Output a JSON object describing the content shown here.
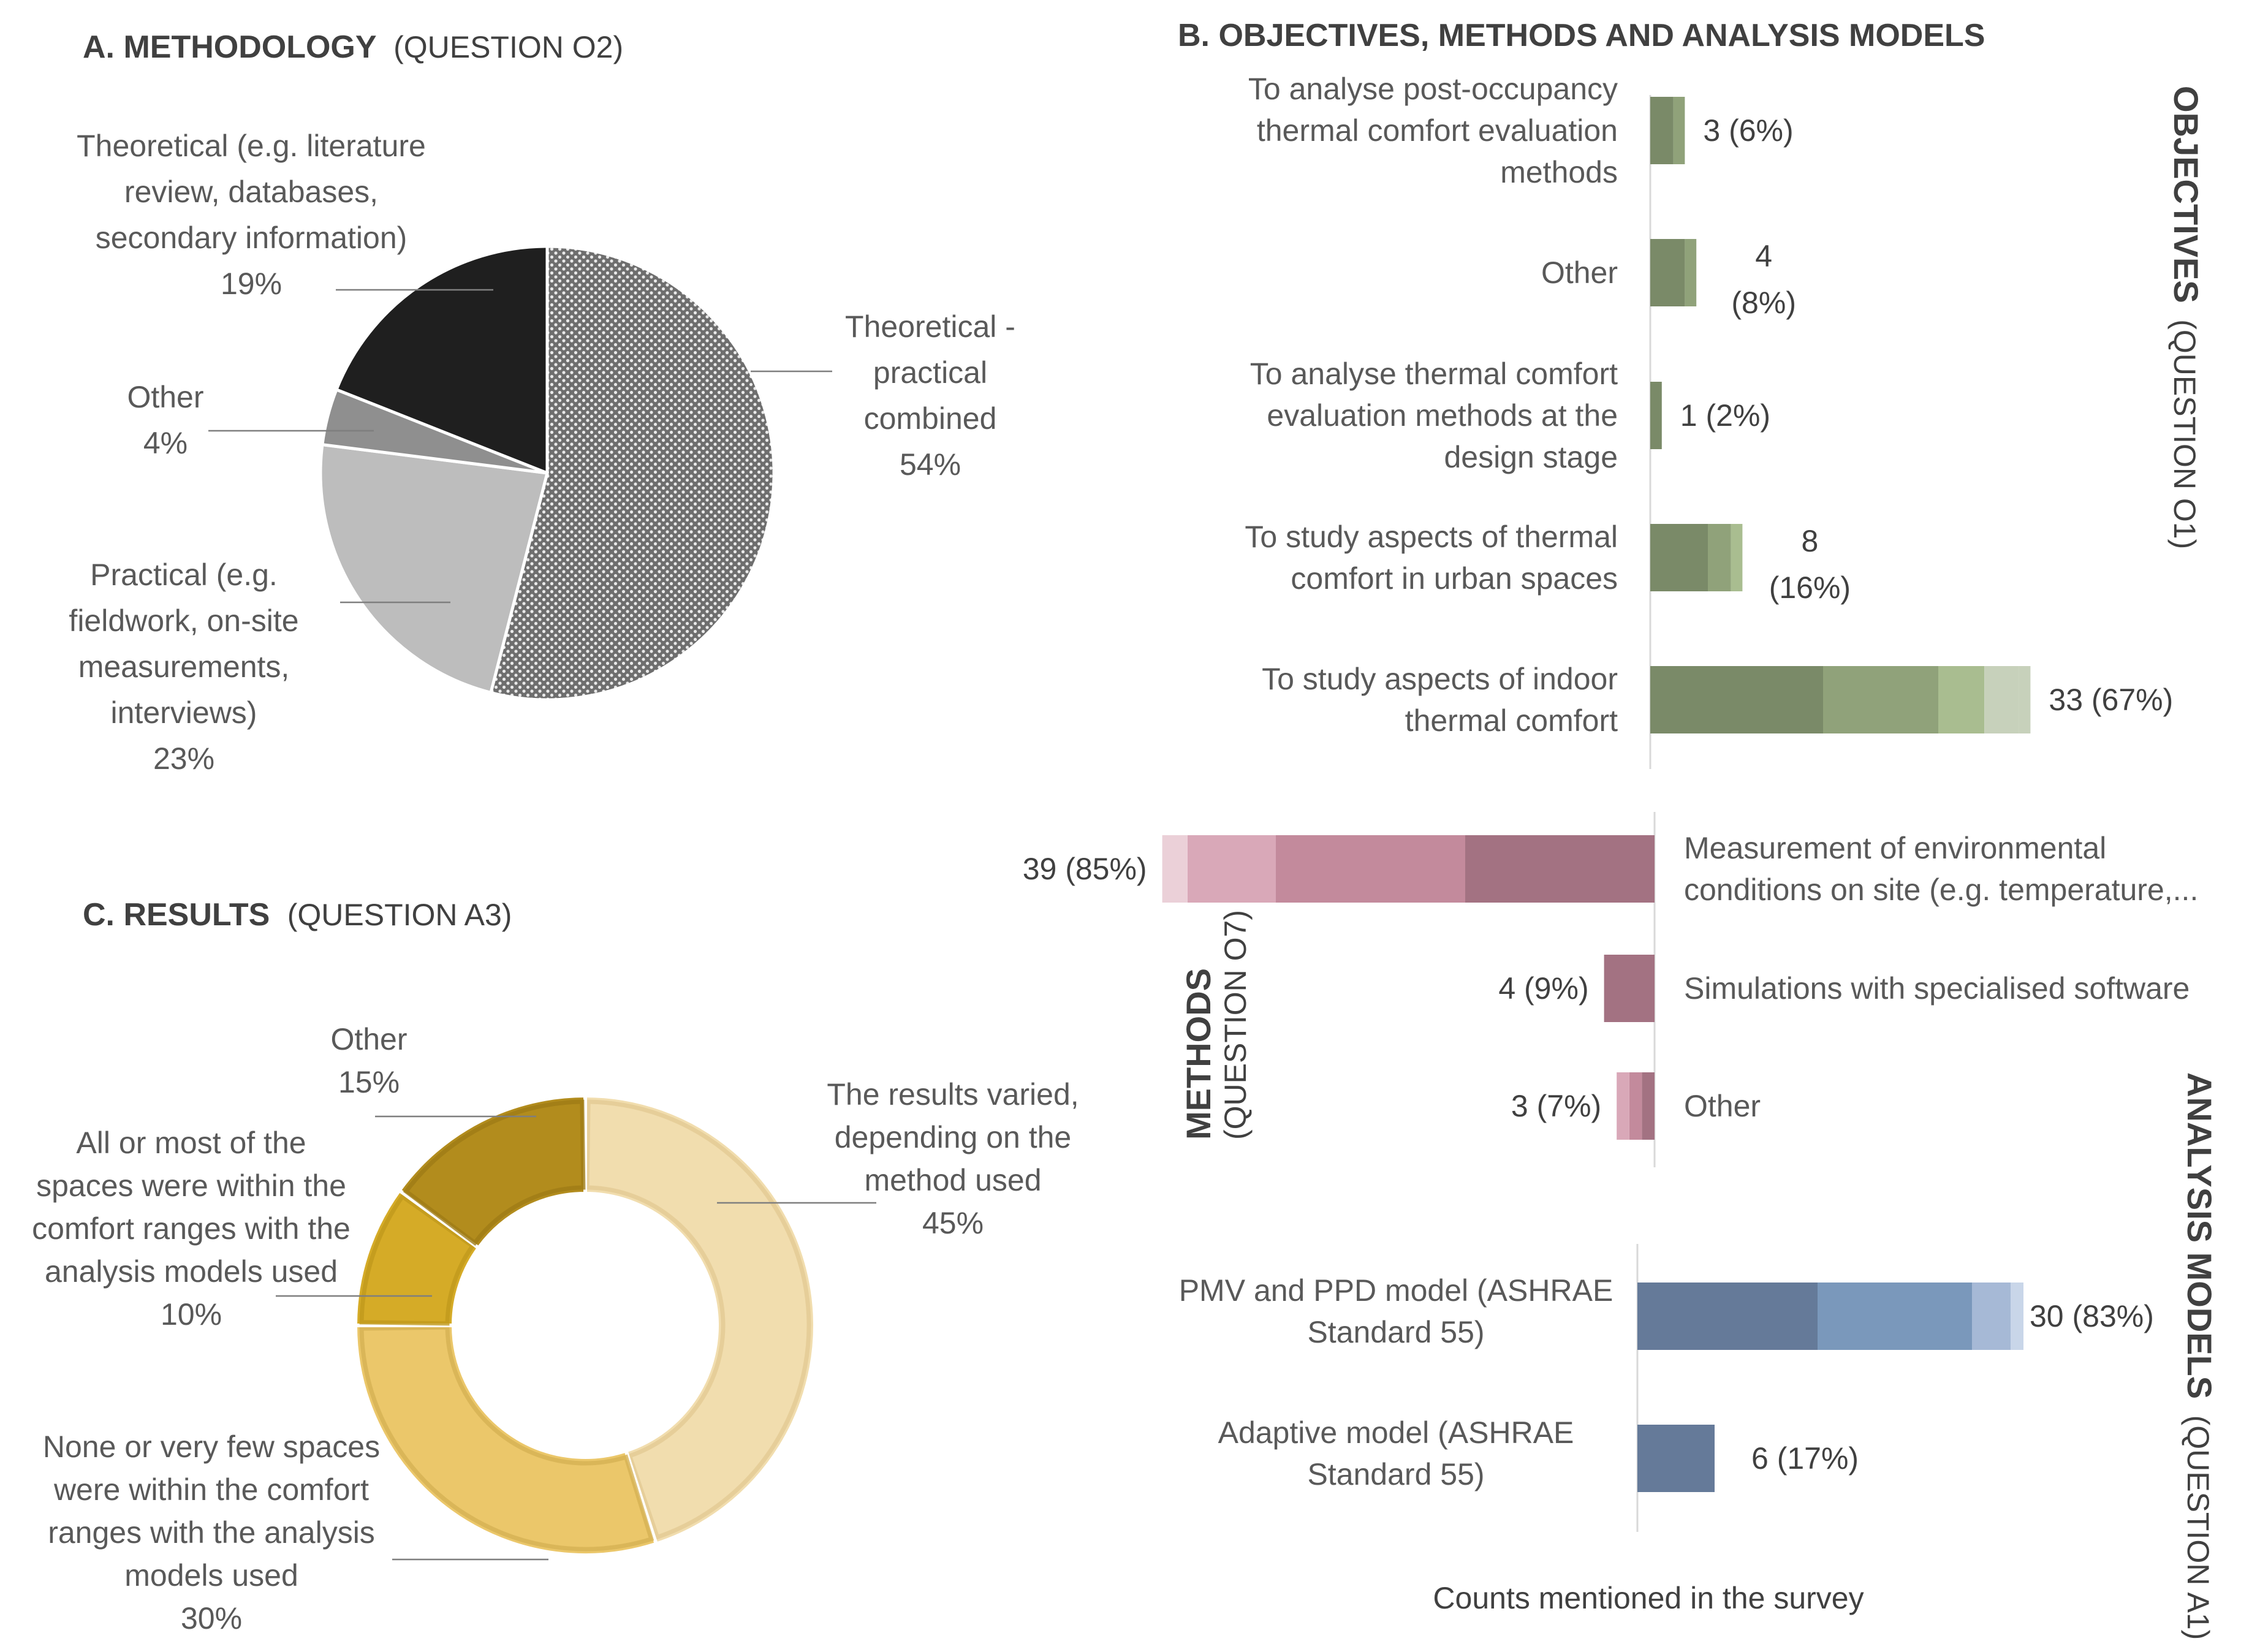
{
  "chart_data": [
    {
      "id": "A",
      "type": "pie",
      "title": "A. METHODOLOGY",
      "subtitle": "(QUESTION O2)",
      "slices": [
        {
          "key": "combined",
          "label": "Theoretical - practical combined",
          "lines": [
            "Theoretical -",
            "practical",
            "combined"
          ],
          "value": 54,
          "pct": "54%",
          "color": "#8c8c8c"
        },
        {
          "key": "practical",
          "label": "Practical (e.g. fieldwork, on-site measurements, interviews)",
          "lines": [
            "Practical (e.g.",
            "fieldwork, on-site",
            "measurements,",
            "interviews)"
          ],
          "value": 23,
          "pct": "23%",
          "color": "#bdbdbd"
        },
        {
          "key": "other",
          "label": "Other",
          "lines": [
            "Other"
          ],
          "value": 4,
          "pct": "4%",
          "color": "#8f8f8f"
        },
        {
          "key": "theoretical",
          "label": "Theoretical (e.g. literature review, databases, secondary information)",
          "lines": [
            "Theoretical (e.g. literature",
            "review, databases,",
            "secondary information)"
          ],
          "value": 19,
          "pct": "19%",
          "color": "#1f1f1f"
        }
      ]
    },
    {
      "id": "B-objectives",
      "type": "bar",
      "orientation": "horizontal",
      "title": "B. OBJECTIVES, METHODS AND ANALYSIS MODELS",
      "side_label": "OBJECTIVES",
      "side_sublabel": "(QUESTION O1)",
      "colors": [
        "#7a8a68",
        "#90a27a",
        "#a9bd90",
        "#c7d1bb"
      ],
      "categories": [
        {
          "lines": [
            "To analyse post-occupancy",
            "thermal comfort evaluation",
            "methods"
          ],
          "value": 3,
          "pct": "6%",
          "value_label": "3 (6%)",
          "segments": [
            2,
            1
          ]
        },
        {
          "lines": [
            "Other"
          ],
          "value": 4,
          "pct": "8%",
          "value_label_lines": [
            "4",
            "(8%)"
          ],
          "segments": [
            3,
            1
          ]
        },
        {
          "lines": [
            "To analyse thermal comfort",
            "evaluation methods at the",
            "design stage"
          ],
          "value": 1,
          "pct": "2%",
          "value_label": "1 (2%)",
          "segments": [
            1
          ]
        },
        {
          "lines": [
            "To study aspects of thermal",
            "comfort in urban spaces"
          ],
          "value": 8,
          "pct": "16%",
          "value_label_lines": [
            "8",
            "(16%)"
          ],
          "segments": [
            5,
            2,
            1
          ]
        },
        {
          "lines": [
            "To study aspects of indoor",
            "thermal comfort"
          ],
          "value": 33,
          "pct": "67%",
          "value_label": "33 (67%)",
          "segments": [
            15,
            10,
            4,
            3,
            1
          ]
        }
      ]
    },
    {
      "id": "B-methods",
      "type": "bar",
      "orientation": "horizontal-left",
      "side_label": "METHODS",
      "side_sublabel": "(QUESTION O7)",
      "colors": [
        "#a37282",
        "#c38a9c",
        "#d9a8b8",
        "#ebd0d8"
      ],
      "categories": [
        {
          "lines": [
            "Measurement of environmental",
            "conditions on site (e.g. temperature,..."
          ],
          "value": 39,
          "pct": "85%",
          "value_label": "39 (85%)",
          "segments": [
            15,
            15,
            7,
            2
          ]
        },
        {
          "lines": [
            "Simulations with specialised software"
          ],
          "value": 4,
          "pct": "9%",
          "value_label": "4 (9%)",
          "segments": [
            4
          ]
        },
        {
          "lines": [
            "Other"
          ],
          "value": 3,
          "pct": "7%",
          "value_label": "3 (7%)",
          "segments": [
            1,
            1,
            1
          ]
        }
      ]
    },
    {
      "id": "B-analysis",
      "type": "bar",
      "orientation": "horizontal",
      "side_label": "ANALYSIS MODELS",
      "side_sublabel": "(QUESTION A1)",
      "xlabel": "Counts mentioned in the survey",
      "colors": [
        "#657a99",
        "#7a98bb",
        "#a6b9d6",
        "#c9d6e9"
      ],
      "categories": [
        {
          "lines": [
            "PMV and PPD model (ASHRAE",
            "Standard 55)"
          ],
          "value": 30,
          "pct": "83%",
          "value_label": "30 (83%)",
          "segments": [
            14,
            12,
            3,
            1
          ]
        },
        {
          "lines": [
            "Adaptive model  (ASHRAE",
            "Standard 55)"
          ],
          "value": 6,
          "pct": "17%",
          "value_label": "6 (17%)",
          "segments": [
            6
          ]
        }
      ]
    },
    {
      "id": "C",
      "type": "donut",
      "title": "C. RESULTS",
      "subtitle": "(QUESTION A3)",
      "slices": [
        {
          "key": "varied",
          "lines": [
            "The results varied,",
            "depending on the",
            "method used"
          ],
          "value": 45,
          "pct": "45%",
          "color": "#f1ddae",
          "stroke": "#e3cb94"
        },
        {
          "key": "none",
          "lines": [
            "None or very few spaces",
            "were within the comfort",
            "ranges with the analysis",
            "models used"
          ],
          "value": 30,
          "pct": "30%",
          "color": "#ebc76a",
          "stroke": "#d6b254"
        },
        {
          "key": "all",
          "lines": [
            "All or most of the",
            "spaces were within the",
            "comfort ranges with the",
            "analysis models used"
          ],
          "value": 10,
          "pct": "10%",
          "color": "#d5ab27",
          "stroke": "#c19a1d"
        },
        {
          "key": "other",
          "lines": [
            "Other"
          ],
          "value": 15,
          "pct": "15%",
          "color": "#b28c1d",
          "stroke": "#9f7c16"
        }
      ]
    }
  ]
}
